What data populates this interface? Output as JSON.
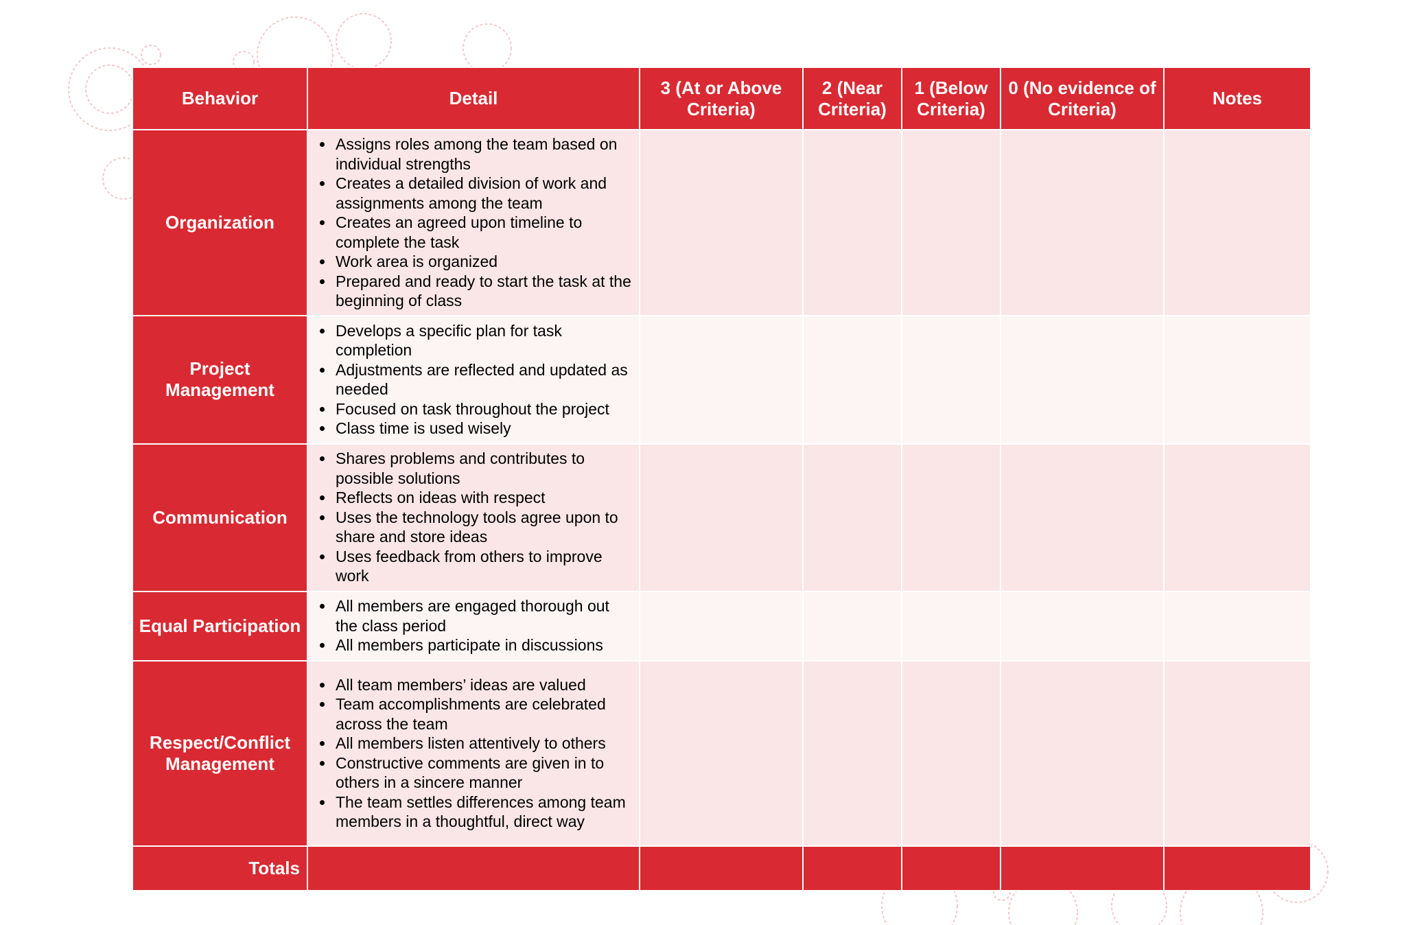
{
  "colors": {
    "header": "#d92932",
    "row_odd": "#fae6e7",
    "row_even": "#fdf4f4"
  },
  "headers": [
    "Behavior",
    "Detail",
    "3 (At or Above Criteria)",
    "2 (Near Criteria)",
    "1 (Below Criteria)",
    "0 (No evidence of Criteria)",
    "Notes"
  ],
  "rows": [
    {
      "behavior": "Organization",
      "details": [
        "Assigns roles among the team based on individual strengths",
        "Creates a detailed division of work and assignments among the team",
        "Creates an agreed upon timeline to complete the task",
        "Work area is organized",
        "Prepared and ready to start the task at the beginning of class"
      ]
    },
    {
      "behavior": "Project Management",
      "details": [
        "Develops a specific plan for task completion",
        "Adjustments are reflected and updated as needed",
        "Focused on task throughout the project",
        "Class time is used wisely"
      ]
    },
    {
      "behavior": "Communication",
      "details": [
        "Shares problems and contributes to possible solutions",
        "Reflects on ideas with respect",
        "Uses the technology tools agree upon to share and store ideas",
        "Uses feedback from others to improve work"
      ]
    },
    {
      "behavior": "Equal Participation",
      "details": [
        "All members are engaged thorough out the class period",
        "All members participate in discussions"
      ]
    },
    {
      "behavior": "Respect/Conflict Management",
      "details": [
        "All team members’ ideas are valued",
        "Team accomplishments are celebrated across the team",
        "All members listen attentively to others",
        "Constructive comments are given in to others in a sincere manner",
        "The team settles differences among team members in a thoughtful, direct way"
      ]
    }
  ],
  "totals_label": "Totals"
}
